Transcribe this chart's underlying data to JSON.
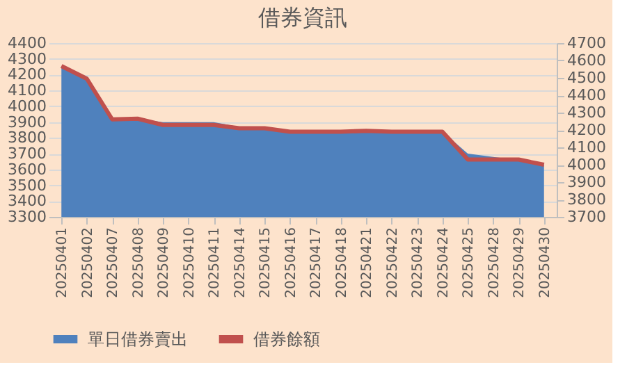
{
  "chart_data": {
    "type": "area",
    "title": "借券資訊",
    "categories": [
      "20250401",
      "20250402",
      "20250407",
      "20250408",
      "20250409",
      "20250410",
      "20250411",
      "20250414",
      "20250415",
      "20250416",
      "20250417",
      "20250418",
      "20250421",
      "20250422",
      "20250423",
      "20250424",
      "20250425",
      "20250428",
      "20250429",
      "20250430"
    ],
    "series": [
      {
        "name": "單日借券賣出",
        "color": "#4f81bd",
        "values": [
          4250,
          4170,
          3910,
          3920,
          3900,
          3900,
          3900,
          3870,
          3870,
          3840,
          3840,
          3840,
          3840,
          3840,
          3840,
          3840,
          3700,
          3680,
          3660,
          3630
        ]
      },
      {
        "name": "借券餘額",
        "type": "line",
        "axis": "y2",
        "color": "#c0504d",
        "values": [
          4568,
          4495,
          4261,
          4265,
          4229,
          4229,
          4229,
          4210,
          4210,
          4190,
          4190,
          4190,
          4195,
          4190,
          4190,
          4190,
          4030,
          4030,
          4030,
          4000
        ]
      }
    ],
    "ylim": [
      3300,
      4400
    ],
    "yticks": [
      3300,
      3400,
      3500,
      3600,
      3700,
      3800,
      3900,
      4000,
      4100,
      4200,
      4300,
      4400
    ],
    "y2lim": [
      3700,
      4700
    ],
    "y2ticks": [
      3700,
      3800,
      3900,
      4000,
      4100,
      4200,
      4300,
      4400,
      4500,
      4600,
      4700
    ],
    "grid": "y",
    "legend": "bottom",
    "marker": "none",
    "line_style": "solid"
  }
}
